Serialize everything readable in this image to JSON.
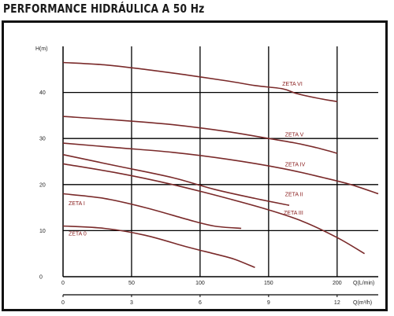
{
  "title": "PERFORMANCE HIDRÁULICA A 50 Hz",
  "chart_data": {
    "type": "line",
    "ylabel": "H(m)",
    "xlabel": "Q(L/min)",
    "x2label": "Q(m³/h)",
    "xlim": [
      0,
      230
    ],
    "ylim": [
      0,
      50
    ],
    "x_ticks": [
      0,
      50,
      100,
      150,
      200
    ],
    "y_ticks": [
      0,
      10,
      20,
      30,
      40
    ],
    "x2_ticks": [
      0,
      3,
      6,
      9,
      12
    ],
    "grid": true,
    "colors": {
      "curve": "#7a2a2a",
      "label": "#8b2020",
      "grid": "#000000"
    },
    "series": [
      {
        "name": "ZETA VI",
        "x": [
          0,
          30,
          60,
          90,
          120,
          140,
          160,
          170,
          185,
          200
        ],
        "y": [
          46.5,
          46.0,
          45.0,
          43.8,
          42.5,
          41.5,
          40.8,
          39.8,
          38.8,
          38.0
        ]
      },
      {
        "name": "ZETA V",
        "x": [
          0,
          40,
          80,
          120,
          150,
          170,
          185,
          200
        ],
        "y": [
          34.8,
          34.0,
          33.0,
          31.5,
          30.0,
          29.0,
          28.0,
          26.8
        ]
      },
      {
        "name": "ZETA IV",
        "x": [
          0,
          40,
          80,
          120,
          160,
          190,
          210,
          230
        ],
        "y": [
          29.0,
          28.0,
          27.0,
          25.5,
          23.5,
          21.5,
          20.0,
          18.0
        ]
      },
      {
        "name": "ZETA III",
        "x": [
          0,
          40,
          80,
          120,
          150,
          175,
          200,
          220
        ],
        "y": [
          24.5,
          22.5,
          20.0,
          17.0,
          14.5,
          12.0,
          8.5,
          5.0
        ]
      },
      {
        "name": "ZETA II",
        "x": [
          0,
          40,
          80,
          110,
          140,
          165
        ],
        "y": [
          26.5,
          24.0,
          21.5,
          19.0,
          17.0,
          15.5
        ]
      },
      {
        "name": "ZETA I",
        "x": [
          0,
          30,
          60,
          90,
          110,
          130
        ],
        "y": [
          18.0,
          17.0,
          15.0,
          12.5,
          11.0,
          10.5
        ]
      },
      {
        "name": "ZETA 0",
        "x": [
          0,
          30,
          60,
          90,
          110,
          125,
          140
        ],
        "y": [
          11.0,
          10.5,
          9.0,
          6.5,
          5.0,
          3.8,
          2.0
        ]
      }
    ],
    "labels": [
      {
        "text": "ZETA VI",
        "x": 160,
        "y": 41.5
      },
      {
        "text": "ZETA V",
        "x": 162,
        "y": 30.5
      },
      {
        "text": "ZETA IV",
        "x": 162,
        "y": 24.0
      },
      {
        "text": "ZETA II",
        "x": 162,
        "y": 17.5
      },
      {
        "text": "ZETA III",
        "x": 161,
        "y": 13.5
      },
      {
        "text": "ZETA I",
        "x": 4,
        "y": 15.5
      },
      {
        "text": "ZETA 0",
        "x": 4,
        "y": 9.0
      }
    ]
  }
}
